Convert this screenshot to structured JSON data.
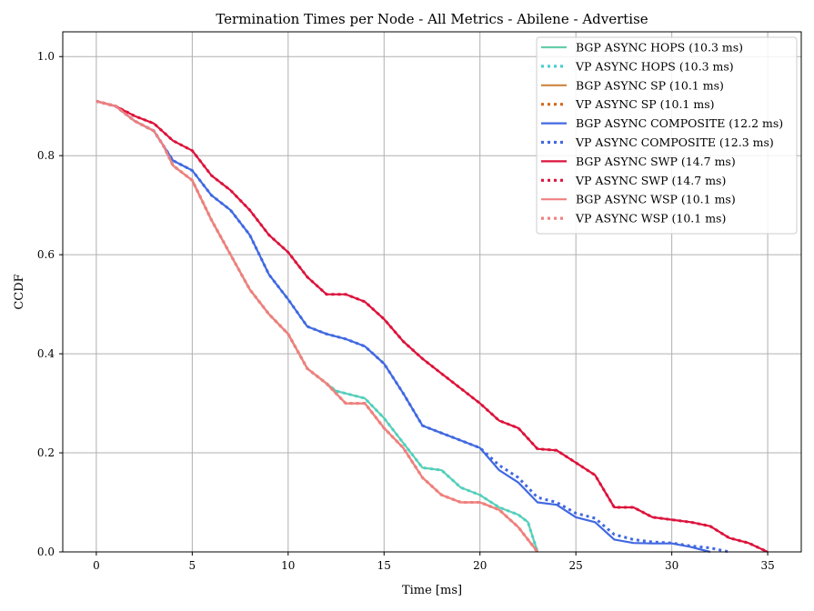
{
  "chart_data": {
    "type": "line",
    "title": "Termination Times per Node - All Metrics - Abilene - Advertise",
    "xlabel": "Time [ms]",
    "ylabel": "CCDF",
    "xlim": [
      -1.75,
      36.75
    ],
    "ylim": [
      0.0,
      1.05
    ],
    "xticks": [
      0,
      5,
      10,
      15,
      20,
      25,
      30,
      35
    ],
    "yticks": [
      0.0,
      0.2,
      0.4,
      0.6,
      0.8,
      1.0
    ],
    "xtick_labels": [
      "0",
      "5",
      "10",
      "15",
      "20",
      "25",
      "30",
      "35"
    ],
    "ytick_labels": [
      "0.0",
      "0.2",
      "0.4",
      "0.6",
      "0.8",
      "1.0"
    ],
    "grid": true,
    "legend_position": "top-right",
    "series": [
      {
        "name": "BGP ASYNC HOPS (10.3 ms)",
        "color": "#66cdaa",
        "style": "solid",
        "x": [
          0,
          1,
          2,
          3,
          3.5,
          4,
          5,
          6,
          7,
          8,
          9,
          10,
          11,
          12,
          12.5,
          13,
          14,
          15,
          16,
          17,
          18,
          19,
          20,
          21,
          22,
          22.5,
          23
        ],
        "y": [
          0.91,
          0.9,
          0.87,
          0.85,
          0.82,
          0.78,
          0.75,
          0.67,
          0.6,
          0.53,
          0.48,
          0.44,
          0.37,
          0.34,
          0.325,
          0.32,
          0.31,
          0.27,
          0.22,
          0.17,
          0.165,
          0.13,
          0.115,
          0.09,
          0.075,
          0.06,
          0.0
        ]
      },
      {
        "name": "VP ASYNC HOPS (10.3 ms)",
        "color": "#48d1cc",
        "style": "dotted",
        "x": [
          0,
          1,
          2,
          3,
          3.5,
          4,
          5,
          6,
          7,
          8,
          9,
          10,
          11,
          12,
          12.5,
          13,
          14,
          15,
          16,
          17,
          18,
          19,
          20,
          21,
          22,
          22.5,
          23
        ],
        "y": [
          0.91,
          0.9,
          0.87,
          0.85,
          0.82,
          0.78,
          0.75,
          0.67,
          0.6,
          0.53,
          0.48,
          0.44,
          0.37,
          0.34,
          0.325,
          0.32,
          0.31,
          0.27,
          0.22,
          0.17,
          0.165,
          0.13,
          0.115,
          0.09,
          0.075,
          0.06,
          0.0
        ]
      },
      {
        "name": "BGP ASYNC SP (10.1 ms)",
        "color": "#cd853f",
        "style": "solid",
        "x": [
          0,
          1,
          2,
          3,
          3.5,
          4,
          5,
          6,
          7,
          8,
          9,
          10,
          11,
          12,
          13,
          14,
          15,
          16,
          17,
          18,
          19,
          20,
          21,
          22,
          23
        ],
        "y": [
          0.91,
          0.9,
          0.87,
          0.85,
          0.82,
          0.78,
          0.75,
          0.67,
          0.6,
          0.53,
          0.48,
          0.44,
          0.37,
          0.34,
          0.3,
          0.3,
          0.25,
          0.21,
          0.15,
          0.115,
          0.1,
          0.1,
          0.085,
          0.05,
          0.0
        ]
      },
      {
        "name": "VP ASYNC SP (10.1 ms)",
        "color": "#d2691e",
        "style": "dotted",
        "x": [
          0,
          1,
          2,
          3,
          3.5,
          4,
          5,
          6,
          7,
          8,
          9,
          10,
          11,
          12,
          13,
          14,
          15,
          16,
          17,
          18,
          19,
          20,
          21,
          22,
          23
        ],
        "y": [
          0.91,
          0.9,
          0.87,
          0.85,
          0.82,
          0.78,
          0.75,
          0.67,
          0.6,
          0.53,
          0.48,
          0.44,
          0.37,
          0.34,
          0.3,
          0.3,
          0.25,
          0.21,
          0.15,
          0.115,
          0.1,
          0.1,
          0.085,
          0.05,
          0.0
        ]
      },
      {
        "name": "BGP ASYNC COMPOSITE (12.2 ms)",
        "color": "#4169e1",
        "style": "solid",
        "x": [
          0,
          1,
          2,
          3,
          4,
          5,
          6,
          7,
          8,
          9,
          10,
          11,
          12,
          13,
          14,
          15,
          16,
          17,
          18,
          19,
          20,
          21,
          22,
          23,
          24,
          25,
          26,
          27,
          28,
          29,
          30,
          31,
          32
        ],
        "y": [
          0.91,
          0.9,
          0.87,
          0.85,
          0.79,
          0.77,
          0.72,
          0.69,
          0.64,
          0.56,
          0.51,
          0.455,
          0.44,
          0.43,
          0.415,
          0.38,
          0.32,
          0.255,
          0.24,
          0.225,
          0.21,
          0.165,
          0.14,
          0.1,
          0.095,
          0.07,
          0.06,
          0.025,
          0.018,
          0.017,
          0.017,
          0.01,
          0.0
        ]
      },
      {
        "name": "VP ASYNC COMPOSITE (12.3 ms)",
        "color": "#4169e1",
        "style": "dotted",
        "x": [
          0,
          1,
          2,
          3,
          4,
          5,
          6,
          7,
          8,
          9,
          10,
          11,
          12,
          13,
          14,
          15,
          16,
          17,
          18,
          19,
          20,
          21,
          22,
          23,
          24,
          25,
          26,
          27,
          28,
          29,
          30,
          31,
          32,
          33
        ],
        "y": [
          0.91,
          0.9,
          0.87,
          0.85,
          0.79,
          0.77,
          0.72,
          0.69,
          0.64,
          0.56,
          0.51,
          0.455,
          0.44,
          0.43,
          0.415,
          0.38,
          0.32,
          0.255,
          0.24,
          0.225,
          0.21,
          0.175,
          0.15,
          0.11,
          0.1,
          0.078,
          0.068,
          0.035,
          0.025,
          0.02,
          0.018,
          0.012,
          0.008,
          0.0
        ]
      },
      {
        "name": "BGP ASYNC SWP (14.7 ms)",
        "color": "#dc143c",
        "style": "solid",
        "x": [
          0,
          1,
          2,
          3,
          4,
          5,
          6,
          7,
          8,
          9,
          10,
          11,
          12,
          13,
          14,
          15,
          16,
          17,
          18,
          19,
          20,
          21,
          22,
          23,
          24,
          25,
          26,
          27,
          28,
          29,
          30,
          31,
          32,
          33,
          34,
          35
        ],
        "y": [
          0.91,
          0.9,
          0.88,
          0.865,
          0.83,
          0.81,
          0.76,
          0.73,
          0.69,
          0.64,
          0.605,
          0.555,
          0.52,
          0.52,
          0.505,
          0.47,
          0.425,
          0.39,
          0.36,
          0.33,
          0.3,
          0.265,
          0.25,
          0.208,
          0.205,
          0.18,
          0.155,
          0.09,
          0.09,
          0.07,
          0.065,
          0.06,
          0.052,
          0.028,
          0.018,
          0.0
        ]
      },
      {
        "name": "VP ASYNC SWP (14.7 ms)",
        "color": "#dc143c",
        "style": "dotted",
        "x": [
          0,
          1,
          2,
          3,
          4,
          5,
          6,
          7,
          8,
          9,
          10,
          11,
          12,
          13,
          14,
          15,
          16,
          17,
          18,
          19,
          20,
          21,
          22,
          23,
          24,
          25,
          26,
          27,
          28,
          29,
          30,
          31,
          32,
          33,
          34,
          35
        ],
        "y": [
          0.91,
          0.9,
          0.88,
          0.865,
          0.83,
          0.81,
          0.76,
          0.73,
          0.69,
          0.64,
          0.605,
          0.555,
          0.52,
          0.52,
          0.505,
          0.47,
          0.425,
          0.39,
          0.36,
          0.33,
          0.3,
          0.265,
          0.25,
          0.208,
          0.205,
          0.18,
          0.155,
          0.09,
          0.09,
          0.07,
          0.065,
          0.06,
          0.052,
          0.028,
          0.018,
          0.0
        ]
      },
      {
        "name": "BGP ASYNC WSP (10.1 ms)",
        "color": "#f08080",
        "style": "solid",
        "x": [
          0,
          1,
          2,
          3,
          3.5,
          4,
          5,
          6,
          7,
          8,
          9,
          10,
          11,
          12,
          13,
          14,
          15,
          16,
          17,
          18,
          19,
          20,
          21,
          22,
          23
        ],
        "y": [
          0.91,
          0.9,
          0.87,
          0.85,
          0.82,
          0.78,
          0.75,
          0.67,
          0.6,
          0.53,
          0.48,
          0.44,
          0.37,
          0.34,
          0.3,
          0.3,
          0.25,
          0.21,
          0.15,
          0.115,
          0.1,
          0.1,
          0.085,
          0.05,
          0.0
        ]
      },
      {
        "name": "VP ASYNC WSP (10.1 ms)",
        "color": "#f08080",
        "style": "dotted",
        "x": [
          0,
          1,
          2,
          3,
          3.5,
          4,
          5,
          6,
          7,
          8,
          9,
          10,
          11,
          12,
          13,
          14,
          15,
          16,
          17,
          18,
          19,
          20,
          21,
          22,
          23
        ],
        "y": [
          0.91,
          0.9,
          0.87,
          0.85,
          0.82,
          0.78,
          0.75,
          0.67,
          0.6,
          0.53,
          0.48,
          0.44,
          0.37,
          0.34,
          0.3,
          0.3,
          0.25,
          0.21,
          0.15,
          0.115,
          0.1,
          0.1,
          0.085,
          0.05,
          0.0
        ]
      }
    ]
  }
}
